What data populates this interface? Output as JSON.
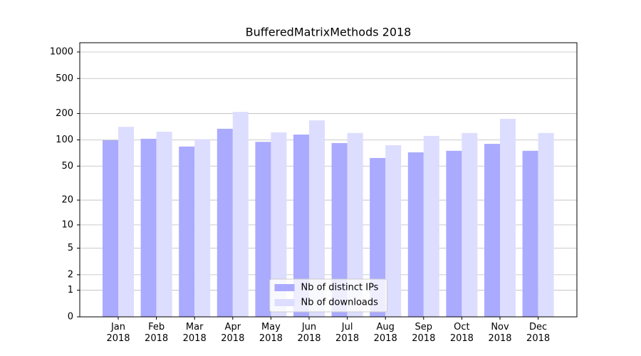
{
  "chart_data": {
    "type": "bar",
    "title": "BufferedMatrixMethods 2018",
    "categories": [
      "Jan\n2018",
      "Feb\n2018",
      "Mar\n2018",
      "Apr\n2018",
      "May\n2018",
      "Jun\n2018",
      "Jul\n2018",
      "Aug\n2018",
      "Sep\n2018",
      "Oct\n2018",
      "Nov\n2018",
      "Dec\n2018"
    ],
    "series": [
      {
        "name": "Nb of distinct IPs",
        "color": "#aaaaff",
        "values": [
          99,
          103,
          84,
          134,
          95,
          115,
          92,
          62,
          72,
          75,
          90,
          75
        ]
      },
      {
        "name": "Nb of downloads",
        "color": "#ddddff",
        "values": [
          141,
          124,
          102,
          209,
          122,
          167,
          120,
          87,
          111,
          120,
          174,
          120
        ]
      }
    ],
    "yscale": "log1p",
    "ylim": [
      0,
      1273
    ],
    "yticks": [
      0,
      1,
      2,
      5,
      10,
      20,
      50,
      100,
      200,
      500,
      1000
    ],
    "grid": true,
    "legend": "lower center"
  }
}
